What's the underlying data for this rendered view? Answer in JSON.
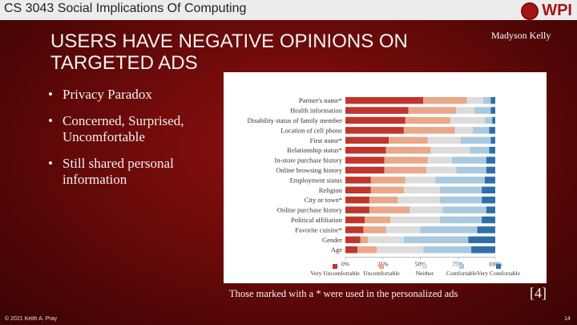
{
  "header": {
    "course": "CS 3043 Social Implications Of Computing",
    "logo_text": "WPI"
  },
  "slide": {
    "title": "USERS HAVE NEGATIVE OPINIONS ON TARGETED ADS",
    "author": "Madyson Kelly",
    "bullets": [
      "Privacy Paradox",
      "Concerned, Surprised, Uncomfortable",
      "Still shared personal information"
    ],
    "caption": "Those marked with a * were used in the personalized ads",
    "reference": "[4]"
  },
  "footer": {
    "copyright": "© 2021 Keith A. Pray",
    "page": "14"
  },
  "colors": [
    "#c0362c",
    "#e9a88a",
    "#dcdcdc",
    "#a9c9e0",
    "#2f6fa8"
  ],
  "chart_data": {
    "type": "bar",
    "orientation": "horizontal",
    "stacked": true,
    "categories": [
      "Partner's name*",
      "Health information",
      "Disability status of family member",
      "Location of cell phone",
      "First name*",
      "Relationship status*",
      "In-store purchase history",
      "Online browsing history",
      "Employment status",
      "Religion",
      "City or town*",
      "Online purchase history",
      "Political affiliation",
      "Favorite cuisine*",
      "Gender",
      "Age"
    ],
    "series": [
      {
        "name": "Very Uncomfortable",
        "values": [
          52,
          42,
          40,
          39,
          29,
          27,
          26,
          26,
          17,
          17,
          16,
          16,
          13,
          12,
          10,
          8
        ]
      },
      {
        "name": "Uncomfortable",
        "values": [
          29,
          32,
          30,
          34,
          26,
          30,
          29,
          28,
          23,
          22,
          19,
          27,
          17,
          15,
          5,
          13
        ]
      },
      {
        "name": "Neither",
        "values": [
          11,
          12,
          23,
          12,
          22,
          26,
          16,
          20,
          20,
          24,
          28,
          22,
          33,
          23,
          24,
          31
        ]
      },
      {
        "name": "Comfortable",
        "values": [
          5,
          11,
          5,
          11,
          20,
          13,
          23,
          20,
          33,
          28,
          28,
          29,
          28,
          38,
          43,
          32
        ]
      },
      {
        "name": "Very Comfortable",
        "values": [
          3,
          3,
          2,
          4,
          3,
          4,
          6,
          6,
          7,
          9,
          9,
          6,
          9,
          12,
          18,
          16
        ]
      }
    ],
    "xticks": [
      "0%",
      "25%",
      "50%",
      "75%",
      "100%"
    ],
    "xlim": [
      0,
      100
    ],
    "legend": "bottom"
  }
}
